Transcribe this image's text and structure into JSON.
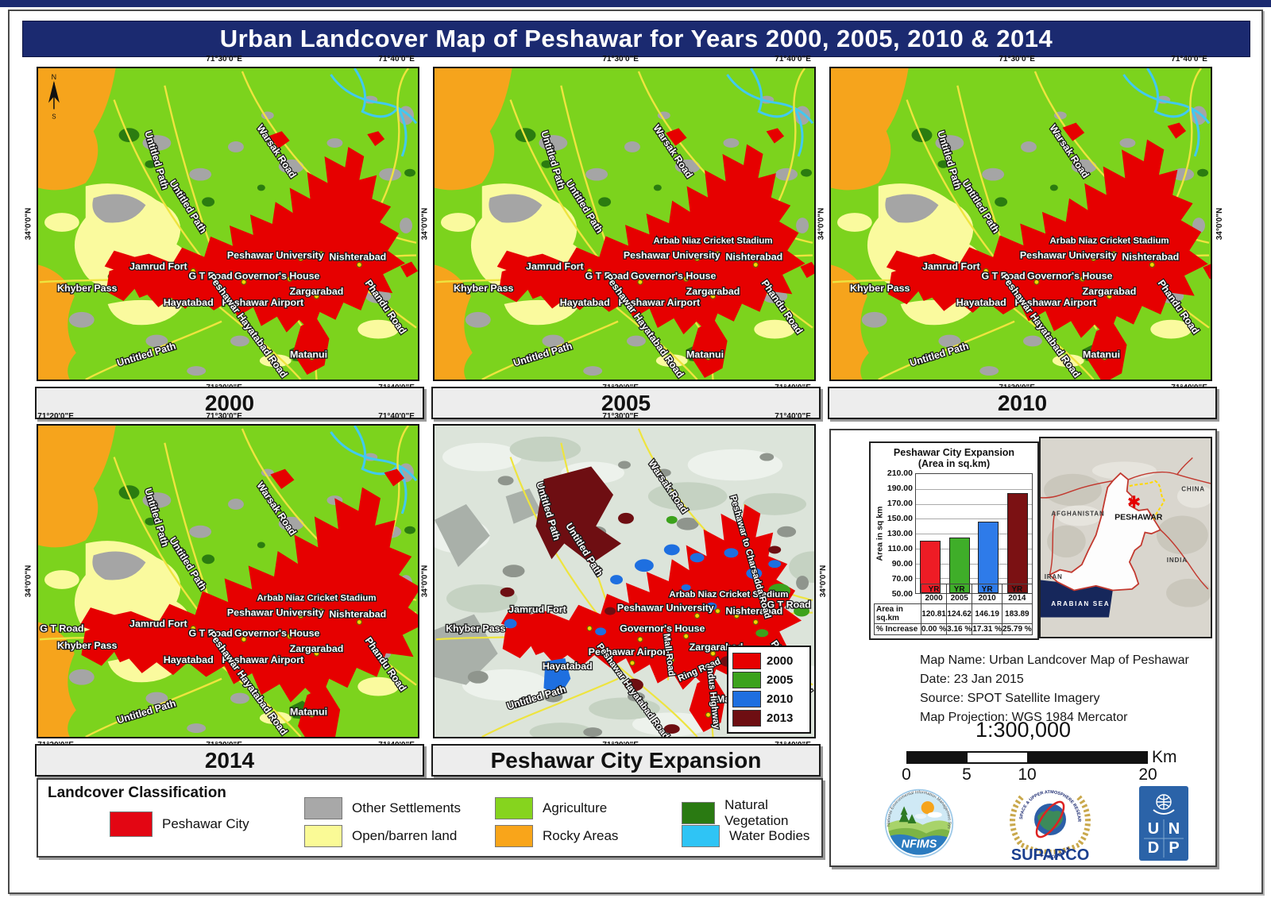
{
  "page": {
    "title": "Urban Landcover Map of Peshawar for Years 2000, 2005, 2010 & 2014"
  },
  "coords": {
    "lon20": "71°20'0\"E",
    "lon30": "71°30'0\"E",
    "lon40": "71°40'0\"E",
    "lat34": "34°0'0\"N"
  },
  "compass": {
    "north": "N",
    "south": "S"
  },
  "panels": {
    "p2000": {
      "caption": "2000"
    },
    "p2005": {
      "caption": "2005"
    },
    "p2010": {
      "caption": "2010"
    },
    "p2014": {
      "caption": "2014"
    },
    "expansion": {
      "caption": "Peshawar City Expansion"
    }
  },
  "places": {
    "untitled_path": "Untitled Path",
    "warsak_road": "Warsak Road",
    "jamrud_fort": "Jamrud Fort",
    "khyber_pass": "Khyber Pass",
    "gt_road": "G T Road",
    "governors_house": "Governor's House",
    "peshawar_university": "Peshawar University",
    "nishterabad": "Nishterabad",
    "arbab_niaz": "Arbab Niaz Cricket Stadium",
    "zargarabad": "Zargarabad",
    "hayatabad": "Hayatabad",
    "peshawar_airport": "Peshawar Airport",
    "peshawar_hayatabad_road": "Peshawar Hayatabad Road",
    "matanui": "Matanui",
    "phandu_road": "Phandu Road",
    "mall_road": "Mall Road",
    "ring_road": "Ring Road",
    "charsadda_road": "Peshawar to Charsadda Road",
    "indus_highway": "Indus Highway"
  },
  "expansion_legend": {
    "items": [
      {
        "label": "2000",
        "color": "#e60000"
      },
      {
        "label": "2005",
        "color": "#3ca21c"
      },
      {
        "label": "2010",
        "color": "#1e6fe0"
      },
      {
        "label": "2013",
        "color": "#6e0e12"
      }
    ]
  },
  "chart_data": {
    "type": "bar",
    "title_line1": "Peshawar City Expansion",
    "title_line2": "(Area in sq.km)",
    "ylabel": "Area in sq km",
    "ylim": [
      50,
      210
    ],
    "yticks": [
      "210.00",
      "190.00",
      "170.00",
      "150.00",
      "130.00",
      "110.00",
      "90.00",
      "70.00",
      "50.00"
    ],
    "categories": [
      {
        "line1": "YR",
        "line2": "2000"
      },
      {
        "line1": "YR",
        "line2": "2005"
      },
      {
        "line1": "YR",
        "line2": "2010"
      },
      {
        "line1": "YR",
        "line2": "2014"
      }
    ],
    "values": [
      120.81,
      124.62,
      146.19,
      183.89
    ],
    "bar_colors": [
      "#ee1c25",
      "#3fae29",
      "#2e7be9",
      "#7b1113"
    ],
    "grid": true,
    "legend_position": "none",
    "table": [
      {
        "label": "Area in sq.km",
        "cells": [
          "120.81",
          "124.62",
          "146.19",
          "183.89"
        ]
      },
      {
        "label": "% Increase",
        "cells": [
          "0.00 %",
          "3.16 %",
          "17.31 %",
          "25.79 %"
        ]
      }
    ]
  },
  "inset": {
    "afghanistan": "AFGHANISTAN",
    "china": "CHINA",
    "india": "INDIA",
    "iran": "IRAN",
    "arabian_sea": "ARABIAN  SEA",
    "city": "PESHAWAR",
    "marker": "✱"
  },
  "metadata": {
    "line1": "Map Name: Urban Landcover Map of Peshawar",
    "line2": "Date: 23 Jan 2015",
    "line3": "Source: SPOT Satellite Imagery",
    "line4": "Map Projection: WGS 1984 Mercator"
  },
  "scalebar": {
    "ratio": "1:300,000",
    "ticks": [
      "0",
      "5",
      "10",
      "20"
    ],
    "unit": "Km"
  },
  "logos": {
    "nfims": "NFIMS",
    "nfims_ring": "National Environmental Information Management System",
    "suparco": "SUPARCO",
    "suparco_ring": "SPACE & UPPER ATMOSPHERE RESEARCH COMMISSION",
    "suparco_ring2": "★ PAKISTAN ★",
    "undp_letters": [
      "U",
      "N",
      "D",
      "P"
    ]
  },
  "landcover_legend": {
    "title": "Landcover Classification",
    "items": [
      {
        "label": "Peshawar City",
        "color": "#e30613"
      },
      {
        "label": "Other Settlements",
        "color": "#a8a8a8"
      },
      {
        "label": "Open/barren land",
        "color": "#fafa96"
      },
      {
        "label": "Agriculture",
        "color": "#86d41e"
      },
      {
        "label": "Rocky Areas",
        "color": "#f9a51a"
      },
      {
        "label": "Natural Vegetation",
        "color": "#2a7a12"
      },
      {
        "label": "Water Bodies",
        "color": "#2fc4f5"
      }
    ]
  }
}
